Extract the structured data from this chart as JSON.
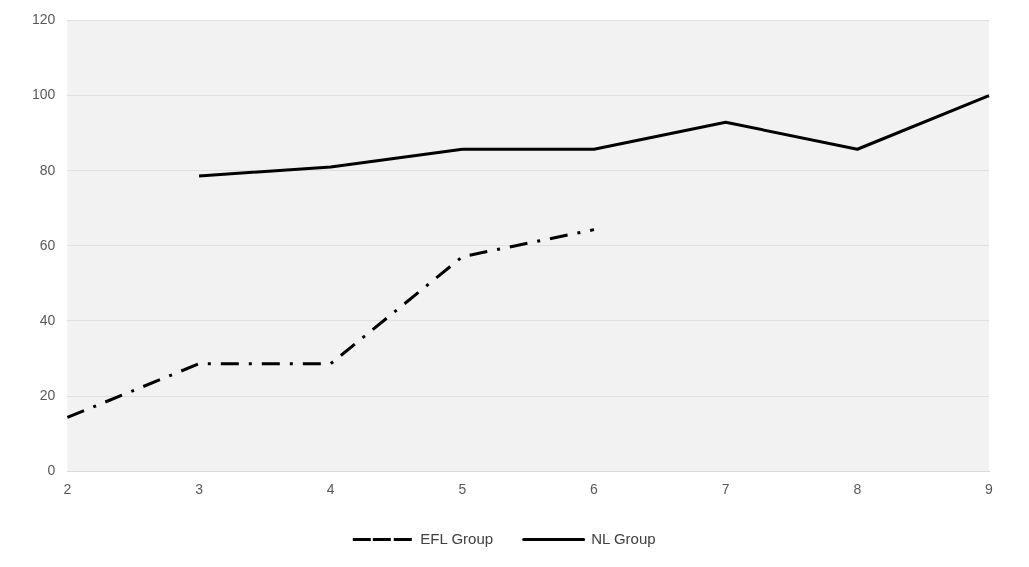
{
  "chart_data": {
    "type": "line",
    "categories": [
      "2",
      "3",
      "4",
      "5",
      "6",
      "7",
      "8",
      "9"
    ],
    "series": [
      {
        "name": "EFL Group",
        "color": "#000000",
        "line_style": "dashed",
        "values": [
          14.3,
          28.6,
          28.6,
          57.1,
          64.3,
          null,
          null,
          null
        ]
      },
      {
        "name": "NL Group",
        "color": "#000000",
        "line_style": "solid",
        "values": [
          null,
          78.6,
          81,
          85.7,
          85.7,
          92.9,
          85.7,
          100
        ]
      }
    ],
    "ylim": [
      0,
      120
    ],
    "yticks": [
      0,
      20,
      40,
      60,
      80,
      100,
      120
    ],
    "grid": "y",
    "legend": "bottom",
    "marker": "none"
  }
}
